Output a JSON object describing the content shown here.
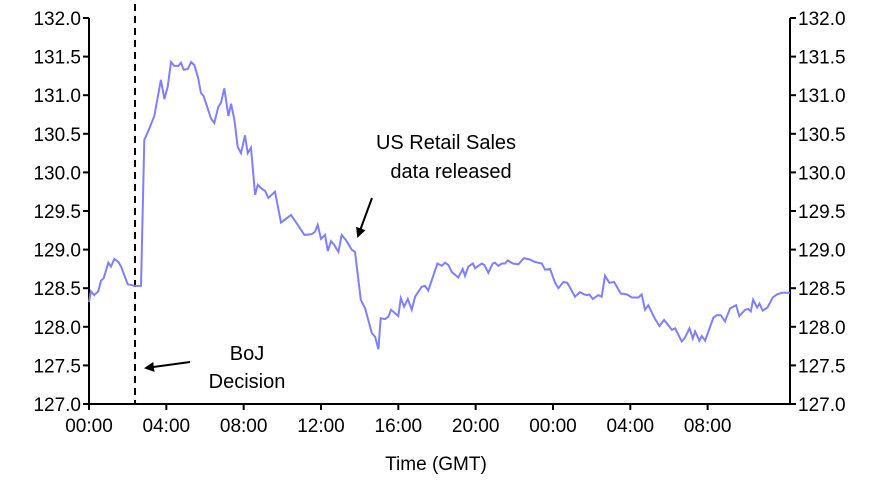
{
  "chart_data": {
    "type": "line",
    "title": "",
    "xlabel": "Time (GMT)",
    "ylabel": "",
    "xlim": [
      0,
      36.26
    ],
    "ylim": [
      127.0,
      132.0
    ],
    "grid": false,
    "x_unit": "hours since first 00:00 tick",
    "x_tick_values": [
      0,
      4,
      8,
      12,
      16,
      20,
      24,
      28,
      32
    ],
    "x_tick_labels": [
      "00:00",
      "04:00",
      "08:00",
      "12:00",
      "16:00",
      "20:00",
      "00:00",
      "04:00",
      "08:00"
    ],
    "y_tick_values": [
      127.0,
      127.5,
      128.0,
      128.5,
      129.0,
      129.5,
      130.0,
      130.5,
      131.0,
      131.5,
      132.0
    ],
    "y_tick_labels": [
      "127.0",
      "127.5",
      "128.0",
      "128.5",
      "129.0",
      "129.5",
      "130.0",
      "130.5",
      "131.0",
      "131.5",
      "132.0"
    ],
    "series_color": "#7f7fff",
    "series": [
      {
        "points": [
          [
            0,
            128.32
          ],
          [
            0.1,
            128.46
          ],
          [
            0.27,
            128.41
          ],
          [
            0.48,
            128.46
          ],
          [
            0.62,
            128.6
          ],
          [
            0.76,
            128.63
          ],
          [
            1.0,
            128.83
          ],
          [
            1.14,
            128.78
          ],
          [
            1.31,
            128.88
          ],
          [
            1.52,
            128.84
          ],
          [
            1.66,
            128.78
          ],
          [
            2.0,
            128.55
          ],
          [
            2.38,
            128.53
          ],
          [
            2.69,
            128.53
          ],
          [
            2.86,
            130.42
          ],
          [
            3.07,
            130.54
          ],
          [
            3.38,
            130.73
          ],
          [
            3.72,
            131.2
          ],
          [
            3.9,
            130.95
          ],
          [
            4.07,
            131.11
          ],
          [
            4.24,
            131.43
          ],
          [
            4.41,
            131.38
          ],
          [
            4.62,
            131.38
          ],
          [
            4.76,
            131.42
          ],
          [
            4.9,
            131.33
          ],
          [
            5.11,
            131.34
          ],
          [
            5.28,
            131.43
          ],
          [
            5.45,
            131.39
          ],
          [
            5.65,
            131.22
          ],
          [
            5.79,
            131.03
          ],
          [
            5.93,
            130.99
          ],
          [
            6.31,
            130.7
          ],
          [
            6.48,
            130.64
          ],
          [
            6.69,
            130.85
          ],
          [
            6.83,
            130.9
          ],
          [
            7.0,
            131.09
          ],
          [
            7.21,
            130.73
          ],
          [
            7.35,
            130.89
          ],
          [
            7.52,
            130.68
          ],
          [
            7.69,
            130.33
          ],
          [
            7.86,
            130.25
          ],
          [
            8.07,
            130.48
          ],
          [
            8.21,
            130.25
          ],
          [
            8.38,
            130.32
          ],
          [
            8.59,
            129.71
          ],
          [
            8.73,
            129.84
          ],
          [
            8.93,
            129.79
          ],
          [
            9.11,
            129.76
          ],
          [
            9.28,
            129.67
          ],
          [
            9.62,
            129.75
          ],
          [
            9.93,
            129.35
          ],
          [
            10.45,
            129.45
          ],
          [
            10.8,
            129.32
          ],
          [
            11.14,
            129.19
          ],
          [
            11.52,
            129.2
          ],
          [
            11.69,
            129.23
          ],
          [
            11.83,
            129.32
          ],
          [
            12.0,
            129.14
          ],
          [
            12.21,
            129.19
          ],
          [
            12.35,
            128.98
          ],
          [
            12.52,
            129.11
          ],
          [
            12.69,
            129.06
          ],
          [
            12.9,
            128.97
          ],
          [
            13.07,
            129.19
          ],
          [
            13.3,
            129.12
          ],
          [
            13.59,
            129.0
          ],
          [
            13.76,
            128.97
          ],
          [
            14.06,
            128.35
          ],
          [
            14.28,
            128.24
          ],
          [
            14.63,
            127.92
          ],
          [
            14.8,
            127.87
          ],
          [
            14.97,
            127.71
          ],
          [
            15.09,
            128.11
          ],
          [
            15.31,
            128.1
          ],
          [
            15.48,
            128.13
          ],
          [
            15.62,
            128.22
          ],
          [
            16.0,
            128.14
          ],
          [
            16.13,
            128.37
          ],
          [
            16.3,
            128.26
          ],
          [
            16.49,
            128.36
          ],
          [
            16.69,
            128.22
          ],
          [
            16.87,
            128.39
          ],
          [
            17.21,
            128.52
          ],
          [
            17.38,
            128.53
          ],
          [
            17.55,
            128.47
          ],
          [
            18.02,
            128.82
          ],
          [
            18.25,
            128.79
          ],
          [
            18.42,
            128.83
          ],
          [
            18.59,
            128.8
          ],
          [
            18.76,
            128.71
          ],
          [
            19.1,
            128.64
          ],
          [
            19.33,
            128.75
          ],
          [
            19.45,
            128.66
          ],
          [
            19.62,
            128.78
          ],
          [
            19.85,
            128.82
          ],
          [
            19.97,
            128.76
          ],
          [
            20.32,
            128.82
          ],
          [
            20.45,
            128.8
          ],
          [
            20.66,
            128.7
          ],
          [
            20.88,
            128.82
          ],
          [
            21.0,
            128.83
          ],
          [
            21.17,
            128.79
          ],
          [
            21.35,
            128.82
          ],
          [
            21.52,
            128.82
          ],
          [
            21.66,
            128.86
          ],
          [
            21.92,
            128.82
          ],
          [
            22.21,
            128.81
          ],
          [
            22.5,
            128.89
          ],
          [
            22.81,
            128.87
          ],
          [
            23.07,
            128.84
          ],
          [
            23.42,
            128.82
          ],
          [
            23.59,
            128.74
          ],
          [
            23.85,
            128.75
          ],
          [
            24.11,
            128.57
          ],
          [
            24.28,
            128.5
          ],
          [
            24.54,
            128.58
          ],
          [
            24.74,
            128.57
          ],
          [
            25.14,
            128.39
          ],
          [
            25.4,
            128.45
          ],
          [
            25.61,
            128.42
          ],
          [
            25.75,
            128.41
          ],
          [
            25.88,
            128.42
          ],
          [
            26.06,
            128.36
          ],
          [
            26.35,
            128.41
          ],
          [
            26.52,
            128.39
          ],
          [
            26.69,
            128.66
          ],
          [
            26.92,
            128.57
          ],
          [
            27.16,
            128.58
          ],
          [
            27.51,
            128.43
          ],
          [
            27.82,
            128.42
          ],
          [
            28.08,
            128.38
          ],
          [
            28.42,
            128.38
          ],
          [
            28.59,
            128.42
          ],
          [
            28.76,
            128.22
          ],
          [
            28.93,
            128.28
          ],
          [
            29.28,
            128.1
          ],
          [
            29.51,
            128.01
          ],
          [
            29.75,
            128.09
          ],
          [
            30.15,
            127.96
          ],
          [
            30.32,
            127.98
          ],
          [
            30.66,
            127.81
          ],
          [
            30.83,
            127.86
          ],
          [
            31.06,
            127.98
          ],
          [
            31.23,
            127.85
          ],
          [
            31.35,
            127.94
          ],
          [
            31.57,
            127.82
          ],
          [
            31.7,
            127.88
          ],
          [
            31.87,
            127.82
          ],
          [
            32.3,
            128.12
          ],
          [
            32.47,
            128.15
          ],
          [
            32.68,
            128.15
          ],
          [
            32.9,
            128.07
          ],
          [
            33.16,
            128.24
          ],
          [
            33.47,
            128.28
          ],
          [
            33.64,
            128.14
          ],
          [
            33.94,
            128.22
          ],
          [
            34.11,
            128.23
          ],
          [
            34.23,
            128.2
          ],
          [
            34.35,
            128.35
          ],
          [
            34.56,
            128.25
          ],
          [
            34.68,
            128.3
          ],
          [
            34.85,
            128.21
          ],
          [
            35.09,
            128.25
          ],
          [
            35.37,
            128.38
          ],
          [
            35.58,
            128.42
          ],
          [
            35.84,
            128.44
          ],
          [
            36.26,
            128.44
          ]
        ]
      }
    ],
    "event_line": {
      "x": 2.38,
      "style": "dashed"
    },
    "annotations": [
      {
        "lines": [
          "US Retail Sales",
          "data released"
        ]
      },
      {
        "lines": [
          "BoJ",
          "Decision"
        ]
      }
    ]
  }
}
